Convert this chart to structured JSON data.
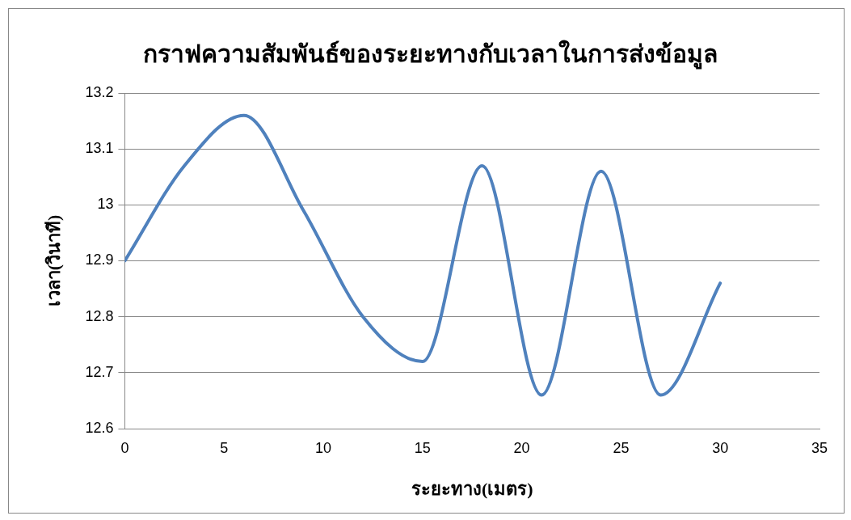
{
  "chart_data": {
    "type": "line",
    "title": "กราฟความสัมพันธ์ของระยะทางกับเวลาในการส่งข้อมูล",
    "xlabel": "ระยะทาง(เมตร)",
    "ylabel": "เวลา(วินาที)",
    "x": [
      0,
      3,
      6,
      9,
      12,
      15,
      18,
      21,
      24,
      27,
      30
    ],
    "series": [
      {
        "color": "#4f81bd",
        "values": [
          12.9,
          13.07,
          13.16,
          12.99,
          12.8,
          12.72,
          13.07,
          12.66,
          13.06,
          12.66,
          12.86
        ]
      }
    ],
    "xlim": [
      0,
      35
    ],
    "xticks": [
      0,
      5,
      10,
      15,
      20,
      25,
      30,
      35
    ],
    "ylim": [
      12.6,
      13.2
    ],
    "yticks": [
      12.6,
      12.7,
      12.8,
      12.9,
      13,
      13.1,
      13.2
    ],
    "grid": "y",
    "legend": false,
    "marker": "none",
    "line_style": "solid"
  }
}
